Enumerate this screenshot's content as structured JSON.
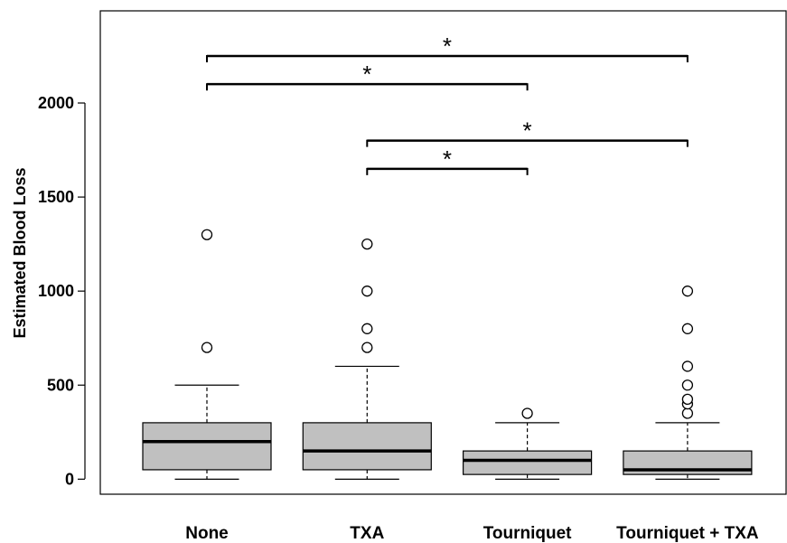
{
  "chart_data": {
    "type": "box",
    "ylabel": "Estimated Blood Loss",
    "xlabel": "",
    "ylim": [
      -80,
      2490
    ],
    "yticks": [
      0,
      500,
      1000,
      1500,
      2000
    ],
    "ytick_labels": [
      "0",
      "500",
      "1000",
      "1500",
      "2000"
    ],
    "categories": [
      "None",
      "TXA",
      "Tourniquet",
      "Tourniquet + TXA"
    ],
    "box_color": "#c0c0c0",
    "boxes": [
      {
        "category": "None",
        "whisker_low": 0,
        "q1": 50,
        "median": 200,
        "q3": 300,
        "whisker_high": 500,
        "outliers": [
          700,
          1300
        ]
      },
      {
        "category": "TXA",
        "whisker_low": 0,
        "q1": 50,
        "median": 150,
        "q3": 300,
        "whisker_high": 600,
        "outliers": [
          700,
          800,
          1000,
          1250
        ]
      },
      {
        "category": "Tourniquet",
        "whisker_low": 0,
        "q1": 25,
        "median": 100,
        "q3": 150,
        "whisker_high": 300,
        "outliers": [
          350
        ]
      },
      {
        "category": "Tourniquet + TXA",
        "whisker_low": 0,
        "q1": 25,
        "median": 50,
        "q3": 150,
        "whisker_high": 300,
        "outliers": [
          350,
          400,
          425,
          500,
          600,
          800,
          1000
        ]
      }
    ],
    "significance_brackets": [
      {
        "from": "None",
        "to": "Tourniquet + TXA",
        "y": 2250,
        "label": "*"
      },
      {
        "from": "None",
        "to": "Tourniquet",
        "y": 2100,
        "label": "*"
      },
      {
        "from": "TXA",
        "to": "Tourniquet + TXA",
        "y": 1800,
        "label": "*"
      },
      {
        "from": "TXA",
        "to": "Tourniquet",
        "y": 1650,
        "label": "*"
      }
    ],
    "grid": false,
    "legend": "none"
  }
}
